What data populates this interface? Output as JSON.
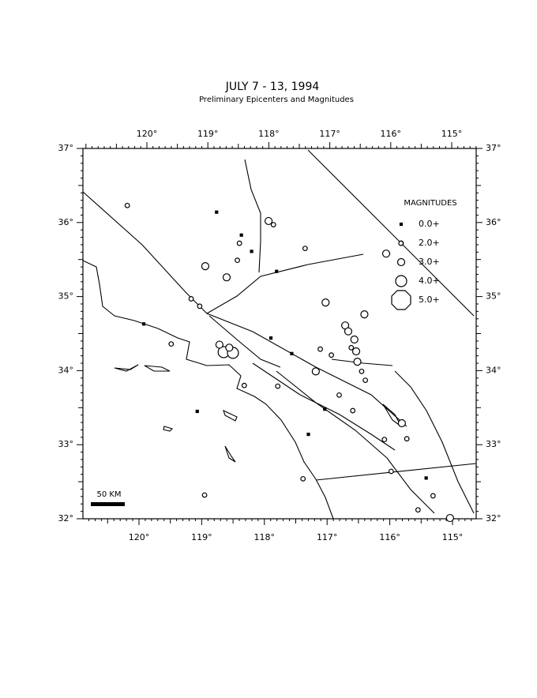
{
  "map": {
    "title": "JULY 7 - 13, 1994",
    "subtitle": "Preliminary Epicenters and Magnitudes",
    "lon_ticks": [
      {
        "value": -120,
        "label": "120°"
      },
      {
        "value": -119,
        "label": "119°"
      },
      {
        "value": -118,
        "label": "118°"
      },
      {
        "value": -117,
        "label": "117°"
      },
      {
        "value": -116,
        "label": "116°"
      },
      {
        "value": -115,
        "label": "115°"
      }
    ],
    "lat_ticks": [
      {
        "value": 37,
        "label": "37°"
      },
      {
        "value": 36,
        "label": "36°"
      },
      {
        "value": 35,
        "label": "35°"
      },
      {
        "value": 34,
        "label": "34°"
      },
      {
        "value": 33,
        "label": "33°"
      },
      {
        "value": 32,
        "label": "32°"
      }
    ],
    "legend": {
      "title": "MAGNITUDES",
      "items": [
        {
          "value": 0,
          "label": "0.0+"
        },
        {
          "value": 2,
          "label": "2.0+"
        },
        {
          "value": 3,
          "label": "3.0+"
        },
        {
          "value": 4,
          "label": "4.0+"
        },
        {
          "value": 5,
          "label": "5.0+"
        }
      ]
    },
    "scale_bar": "50 KM",
    "epicenters": [
      {
        "lon": -120.3,
        "lat": 36.23,
        "mag": 2.5
      },
      {
        "lon": -118.84,
        "lat": 36.14,
        "mag": 1.5
      },
      {
        "lon": -117.99,
        "lat": 36.02,
        "mag": 3
      },
      {
        "lon": -117.91,
        "lat": 35.97,
        "mag": 2.5
      },
      {
        "lon": -117.39,
        "lat": 35.65,
        "mag": 2.5
      },
      {
        "lon": -118.46,
        "lat": 35.72,
        "mag": 2.5
      },
      {
        "lon": -118.43,
        "lat": 35.83,
        "mag": 1
      },
      {
        "lon": -119.01,
        "lat": 35.41,
        "mag": 3
      },
      {
        "lon": -118.66,
        "lat": 35.26,
        "mag": 3.5
      },
      {
        "lon": -118.49,
        "lat": 35.49,
        "mag": 2
      },
      {
        "lon": -118.26,
        "lat": 35.61,
        "mag": 1
      },
      {
        "lon": -117.85,
        "lat": 35.34,
        "mag": 1
      },
      {
        "lon": -119.23,
        "lat": 34.97,
        "mag": 2.5
      },
      {
        "lon": -119.09,
        "lat": 34.87,
        "mag": 2.5
      },
      {
        "lon": -117.05,
        "lat": 34.92,
        "mag": 3.5
      },
      {
        "lon": -116.42,
        "lat": 34.76,
        "mag": 3.5
      },
      {
        "lon": -119.99,
        "lat": 34.63,
        "mag": 1
      },
      {
        "lon": -119.54,
        "lat": 34.36,
        "mag": 2.5
      },
      {
        "lon": -118.69,
        "lat": 34.25,
        "mag": 4
      },
      {
        "lon": -118.54,
        "lat": 34.24,
        "mag": 4
      },
      {
        "lon": -118.76,
        "lat": 34.35,
        "mag": 3.5
      },
      {
        "lon": -118.6,
        "lat": 34.31,
        "mag": 3.5
      },
      {
        "lon": -118.35,
        "lat": 33.8,
        "mag": 2.5
      },
      {
        "lon": -117.81,
        "lat": 33.79,
        "mag": 2.5
      },
      {
        "lon": -117.39,
        "lat": 32.54,
        "mag": 2.5
      },
      {
        "lon": -118.96,
        "lat": 32.32,
        "mag": 2.5
      },
      {
        "lon": -116.73,
        "lat": 34.61,
        "mag": 3.5
      },
      {
        "lon": -116.68,
        "lat": 34.53,
        "mag": 3
      },
      {
        "lon": -116.58,
        "lat": 34.42,
        "mag": 3
      },
      {
        "lon": -116.55,
        "lat": 34.26,
        "mag": 3
      },
      {
        "lon": -116.53,
        "lat": 34.12,
        "mag": 3
      },
      {
        "lon": -116.46,
        "lat": 33.99,
        "mag": 2.5
      },
      {
        "lon": -116.4,
        "lat": 33.87,
        "mag": 2.5
      },
      {
        "lon": -116.63,
        "lat": 34.31,
        "mag": 2
      },
      {
        "lon": -117.2,
        "lat": 33.99,
        "mag": 3
      },
      {
        "lon": -117.13,
        "lat": 34.29,
        "mag": 2
      },
      {
        "lon": -116.95,
        "lat": 34.21,
        "mag": 2
      },
      {
        "lon": -116.82,
        "lat": 33.67,
        "mag": 2
      },
      {
        "lon": -116.6,
        "lat": 33.46,
        "mag": 2.5
      },
      {
        "lon": -115.81,
        "lat": 33.29,
        "mag": 3
      },
      {
        "lon": -116.09,
        "lat": 33.07,
        "mag": 2
      },
      {
        "lon": -115.73,
        "lat": 33.08,
        "mag": 2
      },
      {
        "lon": -116.07,
        "lat": 35.58,
        "mag": 3
      },
      {
        "lon": -115.83,
        "lat": 35.72,
        "mag": 2.5
      },
      {
        "lon": -115.98,
        "lat": 32.64,
        "mag": 2.5
      },
      {
        "lon": -115.31,
        "lat": 32.31,
        "mag": 2
      },
      {
        "lon": -115.55,
        "lat": 32.12,
        "mag": 2.5
      },
      {
        "lon": -115.04,
        "lat": 32.01,
        "mag": 3.5
      },
      {
        "lon": -117.93,
        "lat": 34.44,
        "mag": 1
      },
      {
        "lon": -117.59,
        "lat": 34.23,
        "mag": 1
      },
      {
        "lon": -117.31,
        "lat": 33.14,
        "mag": 1
      },
      {
        "lon": -117.05,
        "lat": 33.48,
        "mag": 1
      },
      {
        "lon": -119.1,
        "lat": 33.45,
        "mag": 1
      },
      {
        "lon": -115.42,
        "lat": 32.55,
        "mag": 1
      }
    ]
  }
}
